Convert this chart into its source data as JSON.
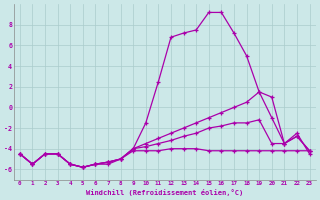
{
  "xlabel": "Windchill (Refroidissement éolien,°C)",
  "background_color": "#cce8e8",
  "line_color": "#aa00aa",
  "grid_color": "#aacccc",
  "xlim": [
    -0.5,
    23.5
  ],
  "ylim": [
    -7,
    10
  ],
  "yticks": [
    -6,
    -4,
    -2,
    0,
    2,
    4,
    6,
    8
  ],
  "xticks": [
    0,
    1,
    2,
    3,
    4,
    5,
    6,
    7,
    8,
    9,
    10,
    11,
    12,
    13,
    14,
    15,
    16,
    17,
    18,
    19,
    20,
    21,
    22,
    23
  ],
  "s1": [
    -4.5,
    -5.5,
    -4.5,
    -4.5,
    -5.5,
    -5.8,
    -5.5,
    -5.5,
    -5.0,
    -4.0,
    -1.5,
    2.5,
    6.8,
    7.2,
    7.5,
    9.2,
    9.2,
    7.2,
    5.0,
    1.5,
    -1.0,
    -3.5,
    -2.8,
    -4.2
  ],
  "s2": [
    -4.5,
    -5.5,
    -4.5,
    -4.5,
    -5.5,
    -5.8,
    -5.5,
    -5.3,
    -5.0,
    -4.0,
    -3.5,
    -3.0,
    -2.5,
    -2.0,
    -1.5,
    -1.0,
    -0.5,
    0.0,
    0.5,
    1.5,
    1.0,
    -3.5,
    -2.5,
    -4.5
  ],
  "s3": [
    -4.5,
    -5.5,
    -4.5,
    -4.5,
    -5.5,
    -5.8,
    -5.5,
    -5.3,
    -5.0,
    -4.0,
    -3.8,
    -3.5,
    -3.2,
    -2.8,
    -2.5,
    -2.0,
    -1.8,
    -1.5,
    -1.5,
    -1.2,
    -3.5,
    -3.5,
    -2.8,
    -4.2
  ],
  "s4": [
    -4.5,
    -5.5,
    -4.5,
    -4.5,
    -5.5,
    -5.8,
    -5.5,
    -5.3,
    -5.0,
    -4.2,
    -4.2,
    -4.2,
    -4.0,
    -4.0,
    -4.0,
    -4.2,
    -4.2,
    -4.2,
    -4.2,
    -4.2,
    -4.2,
    -4.2,
    -4.2,
    -4.2
  ]
}
